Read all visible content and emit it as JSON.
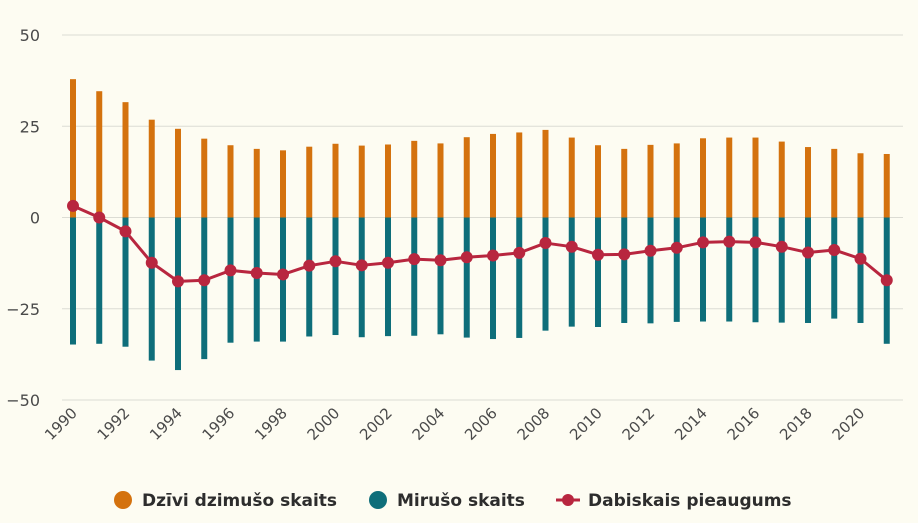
{
  "chart_data": {
    "type": "bar",
    "title": "",
    "xlabel": "",
    "ylabel": "",
    "x": [
      1990,
      1991,
      1992,
      1993,
      1994,
      1995,
      1996,
      1997,
      1998,
      1999,
      2000,
      2001,
      2002,
      2003,
      2004,
      2005,
      2006,
      2007,
      2008,
      2009,
      2010,
      2011,
      2012,
      2013,
      2014,
      2015,
      2016,
      2017,
      2018,
      2019,
      2020,
      2021
    ],
    "x_tick_labels": [
      "1990",
      "1992",
      "1994",
      "1996",
      "1998",
      "2000",
      "2002",
      "2004",
      "2006",
      "2008",
      "2010",
      "2012",
      "2014",
      "2016",
      "2018",
      "2020"
    ],
    "y_tick_labels": [
      "50",
      "25",
      "0",
      "−25",
      "−50"
    ],
    "y_ticks": [
      50,
      25,
      0,
      -25,
      -50
    ],
    "ylim": [
      -50,
      50
    ],
    "grid": true,
    "legend_position": "bottom",
    "series": [
      {
        "name": "Dzīvi dzimušo skaits",
        "type": "bar",
        "color": "#d4720e",
        "values": [
          37.9,
          34.6,
          31.6,
          26.8,
          24.3,
          21.6,
          19.8,
          18.8,
          18.4,
          19.4,
          20.2,
          19.7,
          20.0,
          21.0,
          20.3,
          22.0,
          22.9,
          23.3,
          24.0,
          21.9,
          19.8,
          18.8,
          19.9,
          20.3,
          21.7,
          21.9,
          21.9,
          20.8,
          19.3,
          18.8,
          17.6,
          17.4
        ]
      },
      {
        "name": "Mirušo skaits",
        "type": "bar",
        "color": "#0e6e7a",
        "values": [
          -34.8,
          -34.6,
          -35.4,
          -39.2,
          -41.8,
          -38.8,
          -34.3,
          -34.0,
          -34.0,
          -32.6,
          -32.2,
          -32.8,
          -32.5,
          -32.4,
          -32.0,
          -32.9,
          -33.3,
          -33.0,
          -31.0,
          -29.9,
          -30.0,
          -28.9,
          -29.0,
          -28.6,
          -28.5,
          -28.5,
          -28.7,
          -28.8,
          -28.9,
          -27.7,
          -28.9,
          -34.6
        ]
      },
      {
        "name": "Dabiskais pieaugums",
        "type": "line",
        "color": "#b8263f",
        "values": [
          3.2,
          0.0,
          -3.8,
          -12.4,
          -17.5,
          -17.2,
          -14.5,
          -15.2,
          -15.6,
          -13.2,
          -12.0,
          -13.1,
          -12.4,
          -11.4,
          -11.7,
          -10.9,
          -10.4,
          -9.7,
          -7.0,
          -8.0,
          -10.2,
          -10.1,
          -9.1,
          -8.3,
          -6.8,
          -6.6,
          -6.8,
          -8.0,
          -9.6,
          -8.9,
          -11.3,
          -17.2
        ]
      }
    ]
  }
}
